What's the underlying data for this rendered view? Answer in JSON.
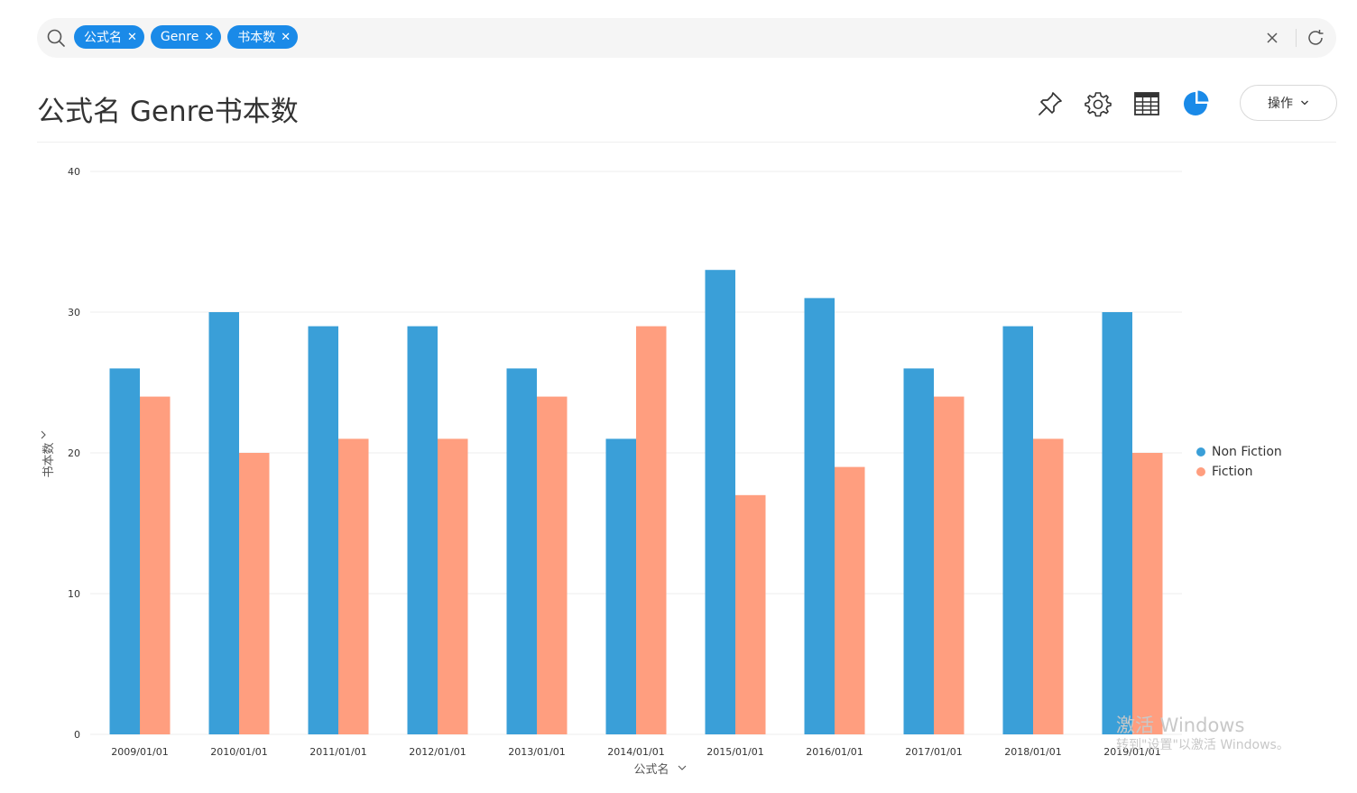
{
  "search": {
    "chips": [
      {
        "label": "公式名"
      },
      {
        "label": "Genre"
      },
      {
        "label": "书本数"
      }
    ]
  },
  "header": {
    "title": "公式名 Genre书本数",
    "action_label": "操作",
    "tools": [
      "pin-icon",
      "gear-icon",
      "table-icon",
      "pie-chart-icon"
    ],
    "accent": "#1a8ae8"
  },
  "chart_data": {
    "type": "bar",
    "categories": [
      "2009/01/01",
      "2010/01/01",
      "2011/01/01",
      "2012/01/01",
      "2013/01/01",
      "2014/01/01",
      "2015/01/01",
      "2016/01/01",
      "2017/01/01",
      "2018/01/01",
      "2019/01/01"
    ],
    "series": [
      {
        "name": "Non Fiction",
        "color": "#3a9fd8",
        "values": [
          26,
          30,
          29,
          29,
          26,
          21,
          33,
          31,
          26,
          29,
          30
        ]
      },
      {
        "name": "Fiction",
        "color": "#ff9e7f",
        "values": [
          24,
          20,
          21,
          21,
          24,
          29,
          17,
          19,
          24,
          21,
          20
        ]
      }
    ],
    "xlabel": "公式名",
    "ylabel": "书本数",
    "ylim": [
      0,
      40
    ],
    "yticks": [
      0,
      10,
      20,
      30,
      40
    ],
    "grid": true,
    "legend": "right"
  },
  "watermark": {
    "line1": "激活 Windows",
    "line2": "转到\"设置\"以激活 Windows。"
  }
}
